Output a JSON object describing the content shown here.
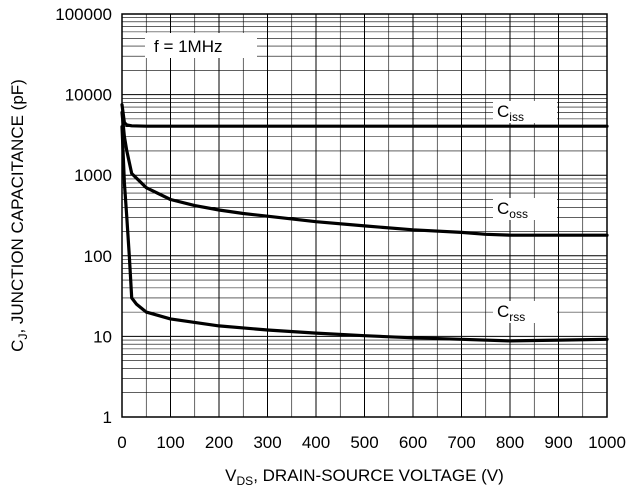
{
  "chart_data": {
    "type": "line",
    "title": "",
    "xlabel": {
      "main": "V",
      "sub": "DS",
      "rest": ", DRAIN-SOURCE VOLTAGE (V)"
    },
    "ylabel": {
      "main": "C",
      "sub": "J",
      "rest": ", JUNCTION CAPACITANCE (pF)"
    },
    "xlim": [
      0,
      1000
    ],
    "ylim": [
      1,
      100000
    ],
    "yscale": "log",
    "grid": true,
    "x_ticks": [
      "0",
      "100",
      "200",
      "300",
      "400",
      "500",
      "600",
      "700",
      "800",
      "900",
      "1000"
    ],
    "y_ticks": [
      "1",
      "10",
      "100",
      "1000",
      "10000",
      "100000"
    ],
    "annotation": "f = 1MHz",
    "series": [
      {
        "name": "C_iss",
        "label_main": "C",
        "label_sub": "iss",
        "x": [
          0,
          5,
          10,
          20,
          50,
          100,
          200,
          300,
          400,
          500,
          600,
          700,
          800,
          900,
          1000
        ],
        "y": [
          7500,
          4500,
          4200,
          4100,
          4050,
          4050,
          4050,
          4050,
          4050,
          4050,
          4050,
          4050,
          4050,
          4050,
          4050
        ]
      },
      {
        "name": "C_oss",
        "label_main": "C",
        "label_sub": "oss",
        "x": [
          0,
          5,
          10,
          20,
          50,
          100,
          150,
          200,
          250,
          300,
          400,
          500,
          600,
          700,
          750,
          800,
          900,
          1000
        ],
        "y": [
          6000,
          3000,
          2000,
          1050,
          700,
          500,
          420,
          370,
          335,
          310,
          265,
          235,
          210,
          195,
          185,
          180,
          180,
          180
        ]
      },
      {
        "name": "C_rss",
        "label_main": "C",
        "label_sub": "rss",
        "x": [
          0,
          5,
          10,
          15,
          20,
          30,
          50,
          100,
          200,
          300,
          400,
          500,
          600,
          700,
          800,
          900,
          1000
        ],
        "y": [
          4000,
          800,
          300,
          100,
          30,
          25,
          20,
          16.5,
          13.5,
          12,
          11,
          10.2,
          9.6,
          9.2,
          8.8,
          9,
          9.2
        ]
      }
    ]
  }
}
